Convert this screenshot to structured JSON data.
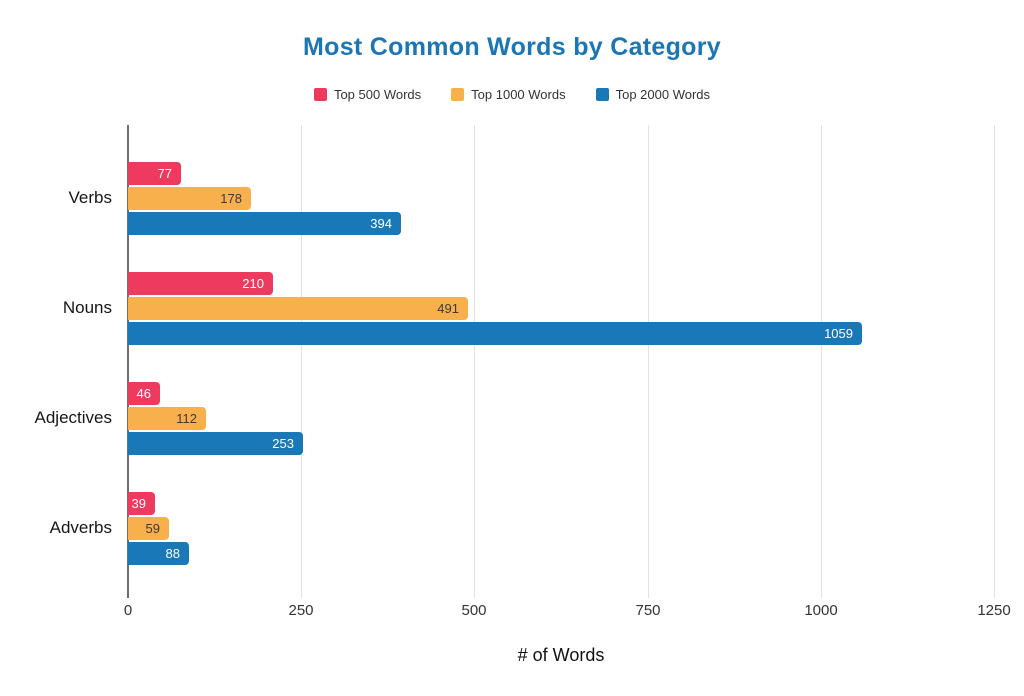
{
  "chart_data": {
    "type": "bar",
    "orientation": "horizontal",
    "title": "Most Common Words by Category",
    "xlabel": "# of Words",
    "ylabel": "",
    "categories": [
      "Verbs",
      "Nouns",
      "Adjectives",
      "Adverbs"
    ],
    "series": [
      {
        "name": "Top 500 Words",
        "color": "#ee3a5f",
        "label_color": "#ffffff",
        "values": [
          77,
          210,
          46,
          39
        ]
      },
      {
        "name": "Top 1000 Words",
        "color": "#f8b04d",
        "label_color": "#3a3a3a",
        "values": [
          178,
          491,
          112,
          59
        ]
      },
      {
        "name": "Top 2000 Words",
        "color": "#1878b8",
        "label_color": "#ffffff",
        "values": [
          394,
          1059,
          253,
          88
        ]
      }
    ],
    "xlim": [
      0,
      1250
    ],
    "xticks": [
      0,
      250,
      500,
      750,
      1000,
      1250
    ],
    "grid": true,
    "legend_position": "top"
  },
  "colors": {
    "title": "#1d76b4",
    "gridline": "#e2e2e2",
    "axis_line": "#6e6e6e",
    "background": "#ffffff"
  }
}
